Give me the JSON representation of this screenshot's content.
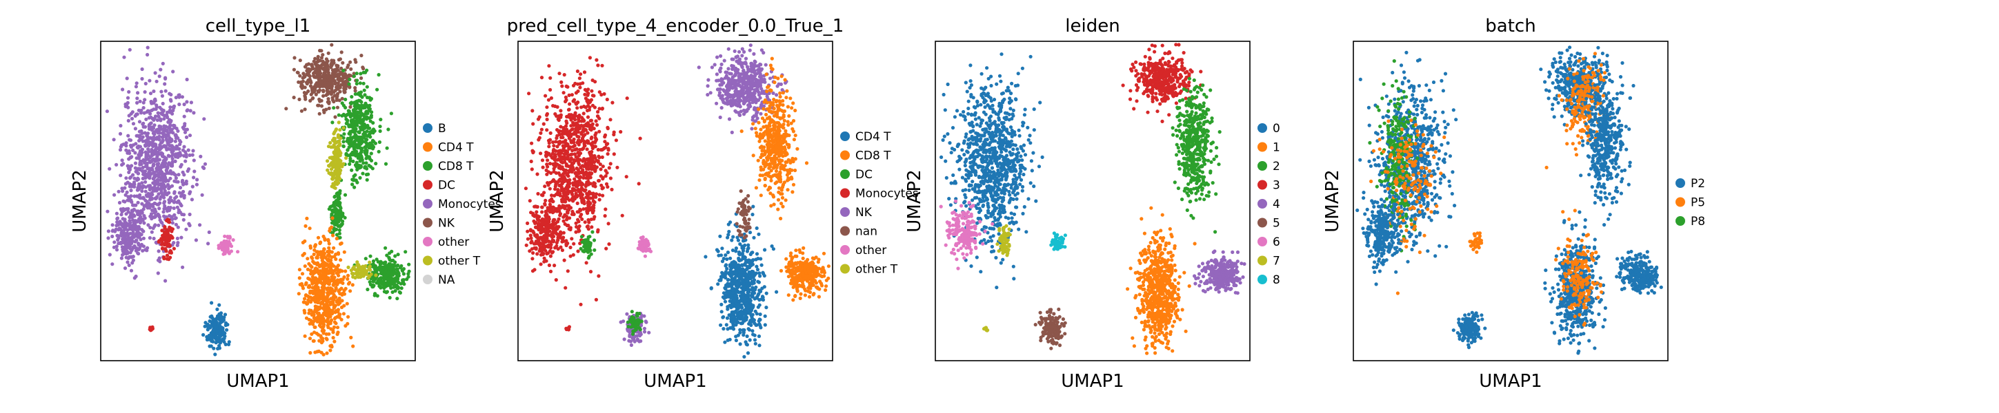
{
  "chart_data": [
    {
      "type": "scatter",
      "title": "cell_type_l1",
      "xlabel": "UMAP1",
      "ylabel": "UMAP2",
      "legend_position": "right",
      "categories": [
        "B",
        "CD4 T",
        "CD8 T",
        "DC",
        "Monocytes",
        "NK",
        "other",
        "other T",
        "NA"
      ],
      "colors": [
        "#1f77b4",
        "#ff7f0e",
        "#2ca02c",
        "#d62728",
        "#9467bd",
        "#8c564b",
        "#e377c2",
        "#bcbd22",
        "#d3d3d3"
      ],
      "clusters": [
        {
          "cat": 4,
          "cx": 0.18,
          "cy": 0.62,
          "rx": 0.1,
          "ry": 0.22,
          "n": 900
        },
        {
          "cat": 4,
          "cx": 0.09,
          "cy": 0.4,
          "rx": 0.05,
          "ry": 0.09,
          "n": 250
        },
        {
          "cat": 3,
          "cx": 0.21,
          "cy": 0.38,
          "rx": 0.02,
          "ry": 0.05,
          "n": 80
        },
        {
          "cat": 3,
          "cx": 0.16,
          "cy": 0.1,
          "rx": 0.006,
          "ry": 0.006,
          "n": 8
        },
        {
          "cat": 6,
          "cx": 0.4,
          "cy": 0.36,
          "rx": 0.018,
          "ry": 0.025,
          "n": 60
        },
        {
          "cat": 0,
          "cx": 0.37,
          "cy": 0.1,
          "rx": 0.03,
          "ry": 0.045,
          "n": 160
        },
        {
          "cat": 5,
          "cx": 0.72,
          "cy": 0.88,
          "rx": 0.08,
          "ry": 0.07,
          "n": 400
        },
        {
          "cat": 2,
          "cx": 0.82,
          "cy": 0.72,
          "rx": 0.05,
          "ry": 0.14,
          "n": 420
        },
        {
          "cat": 7,
          "cx": 0.75,
          "cy": 0.62,
          "rx": 0.02,
          "ry": 0.08,
          "n": 160
        },
        {
          "cat": 2,
          "cx": 0.75,
          "cy": 0.46,
          "rx": 0.02,
          "ry": 0.06,
          "n": 120
        },
        {
          "cat": 1,
          "cx": 0.71,
          "cy": 0.22,
          "rx": 0.06,
          "ry": 0.14,
          "n": 650
        },
        {
          "cat": 2,
          "cx": 0.91,
          "cy": 0.27,
          "rx": 0.055,
          "ry": 0.05,
          "n": 280
        },
        {
          "cat": 7,
          "cx": 0.83,
          "cy": 0.28,
          "rx": 0.03,
          "ry": 0.025,
          "n": 60
        }
      ]
    },
    {
      "type": "scatter",
      "title": "pred_cell_type_4_encoder_0.0_True_1",
      "xlabel": "UMAP1",
      "ylabel": "UMAP2",
      "legend_position": "right",
      "categories": [
        "CD4 T",
        "CD8 T",
        "DC",
        "Monocytes",
        "NK",
        "nan",
        "other",
        "other T"
      ],
      "colors": [
        "#1f77b4",
        "#ff7f0e",
        "#2ca02c",
        "#d62728",
        "#9467bd",
        "#8c564b",
        "#e377c2",
        "#bcbd22"
      ],
      "clusters": [
        {
          "cat": 3,
          "cx": 0.18,
          "cy": 0.62,
          "rx": 0.1,
          "ry": 0.22,
          "n": 900
        },
        {
          "cat": 3,
          "cx": 0.09,
          "cy": 0.4,
          "rx": 0.05,
          "ry": 0.09,
          "n": 250
        },
        {
          "cat": 2,
          "cx": 0.22,
          "cy": 0.36,
          "rx": 0.015,
          "ry": 0.03,
          "n": 50
        },
        {
          "cat": 3,
          "cx": 0.16,
          "cy": 0.1,
          "rx": 0.006,
          "ry": 0.006,
          "n": 8
        },
        {
          "cat": 6,
          "cx": 0.4,
          "cy": 0.36,
          "rx": 0.018,
          "ry": 0.025,
          "n": 60
        },
        {
          "cat": 4,
          "cx": 0.37,
          "cy": 0.1,
          "rx": 0.03,
          "ry": 0.045,
          "n": 110
        },
        {
          "cat": 2,
          "cx": 0.37,
          "cy": 0.12,
          "rx": 0.02,
          "ry": 0.03,
          "n": 50
        },
        {
          "cat": 4,
          "cx": 0.72,
          "cy": 0.86,
          "rx": 0.08,
          "ry": 0.09,
          "n": 500
        },
        {
          "cat": 1,
          "cx": 0.82,
          "cy": 0.68,
          "rx": 0.05,
          "ry": 0.16,
          "n": 450
        },
        {
          "cat": 0,
          "cx": 0.71,
          "cy": 0.22,
          "rx": 0.06,
          "ry": 0.14,
          "n": 650
        },
        {
          "cat": 1,
          "cx": 0.91,
          "cy": 0.27,
          "rx": 0.055,
          "ry": 0.05,
          "n": 280
        },
        {
          "cat": 5,
          "cx": 0.72,
          "cy": 0.45,
          "rx": 0.02,
          "ry": 0.06,
          "n": 60
        }
      ]
    },
    {
      "type": "scatter",
      "title": "leiden",
      "xlabel": "UMAP1",
      "ylabel": "UMAP2",
      "legend_position": "right",
      "categories": [
        "0",
        "1",
        "2",
        "3",
        "4",
        "5",
        "6",
        "7",
        "8"
      ],
      "colors": [
        "#1f77b4",
        "#ff7f0e",
        "#2ca02c",
        "#d62728",
        "#9467bd",
        "#8c564b",
        "#e377c2",
        "#bcbd22",
        "#17becf"
      ],
      "clusters": [
        {
          "cat": 0,
          "cx": 0.18,
          "cy": 0.62,
          "rx": 0.1,
          "ry": 0.22,
          "n": 900
        },
        {
          "cat": 6,
          "cx": 0.09,
          "cy": 0.4,
          "rx": 0.05,
          "ry": 0.07,
          "n": 180
        },
        {
          "cat": 7,
          "cx": 0.22,
          "cy": 0.37,
          "rx": 0.018,
          "ry": 0.04,
          "n": 60
        },
        {
          "cat": 7,
          "cx": 0.16,
          "cy": 0.1,
          "rx": 0.006,
          "ry": 0.006,
          "n": 8
        },
        {
          "cat": 8,
          "cx": 0.39,
          "cy": 0.37,
          "rx": 0.018,
          "ry": 0.025,
          "n": 60
        },
        {
          "cat": 5,
          "cx": 0.37,
          "cy": 0.1,
          "rx": 0.03,
          "ry": 0.045,
          "n": 160
        },
        {
          "cat": 3,
          "cx": 0.72,
          "cy": 0.88,
          "rx": 0.08,
          "ry": 0.07,
          "n": 400
        },
        {
          "cat": 2,
          "cx": 0.82,
          "cy": 0.68,
          "rx": 0.05,
          "ry": 0.16,
          "n": 450
        },
        {
          "cat": 1,
          "cx": 0.71,
          "cy": 0.22,
          "rx": 0.06,
          "ry": 0.14,
          "n": 650
        },
        {
          "cat": 4,
          "cx": 0.91,
          "cy": 0.27,
          "rx": 0.055,
          "ry": 0.05,
          "n": 280
        }
      ]
    },
    {
      "type": "scatter",
      "title": "batch",
      "xlabel": "UMAP1",
      "ylabel": "UMAP2",
      "legend_position": "right",
      "categories": [
        "P2",
        "P5",
        "P8"
      ],
      "colors": [
        "#1f77b4",
        "#ff7f0e",
        "#2ca02c"
      ],
      "clusters": [
        {
          "cat": 0,
          "cx": 0.18,
          "cy": 0.62,
          "rx": 0.1,
          "ry": 0.22,
          "n": 700
        },
        {
          "cat": 2,
          "cx": 0.14,
          "cy": 0.64,
          "rx": 0.05,
          "ry": 0.2,
          "n": 250
        },
        {
          "cat": 1,
          "cx": 0.18,
          "cy": 0.55,
          "rx": 0.08,
          "ry": 0.2,
          "n": 150
        },
        {
          "cat": 0,
          "cx": 0.09,
          "cy": 0.4,
          "rx": 0.05,
          "ry": 0.09,
          "n": 250
        },
        {
          "cat": 1,
          "cx": 0.39,
          "cy": 0.37,
          "rx": 0.018,
          "ry": 0.025,
          "n": 40
        },
        {
          "cat": 0,
          "cx": 0.37,
          "cy": 0.1,
          "rx": 0.03,
          "ry": 0.045,
          "n": 160
        },
        {
          "cat": 0,
          "cx": 0.72,
          "cy": 0.86,
          "rx": 0.08,
          "ry": 0.09,
          "n": 400
        },
        {
          "cat": 1,
          "cx": 0.74,
          "cy": 0.8,
          "rx": 0.06,
          "ry": 0.12,
          "n": 200
        },
        {
          "cat": 0,
          "cx": 0.8,
          "cy": 0.68,
          "rx": 0.05,
          "ry": 0.16,
          "n": 400
        },
        {
          "cat": 0,
          "cx": 0.71,
          "cy": 0.22,
          "rx": 0.06,
          "ry": 0.14,
          "n": 500
        },
        {
          "cat": 1,
          "cx": 0.72,
          "cy": 0.26,
          "rx": 0.05,
          "ry": 0.12,
          "n": 150
        },
        {
          "cat": 0,
          "cx": 0.91,
          "cy": 0.27,
          "rx": 0.055,
          "ry": 0.05,
          "n": 280
        }
      ]
    }
  ]
}
